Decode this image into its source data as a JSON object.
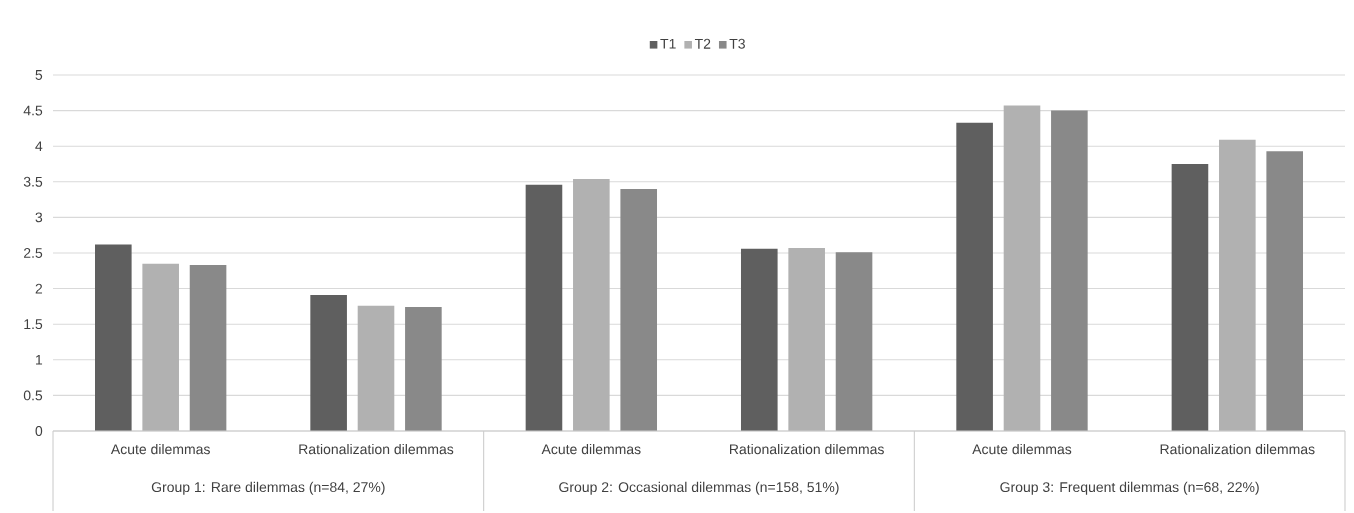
{
  "chart_data": {
    "type": "bar",
    "categories": [
      "Acute dilemmas",
      "Rationalization dilemmas",
      "Acute dilemmas",
      "Rationalization dilemmas",
      "Acute dilemmas",
      "Rationalization dilemmas"
    ],
    "series": [
      {
        "name": "T1",
        "color": "#5f5f5f",
        "values": [
          2.62,
          1.91,
          3.46,
          2.56,
          4.33,
          3.75
        ]
      },
      {
        "name": "T2",
        "color": "#b1b1b1",
        "values": [
          2.35,
          1.76,
          3.54,
          2.57,
          4.57,
          4.09
        ]
      },
      {
        "name": "T3",
        "color": "#898989",
        "values": [
          2.33,
          1.74,
          3.4,
          2.51,
          4.5,
          3.93
        ]
      }
    ],
    "ylim": [
      0,
      5
    ],
    "yticks": [
      0,
      0.5,
      1,
      1.5,
      2,
      2.5,
      3,
      3.5,
      4,
      4.5,
      5
    ],
    "grid": "y",
    "legend": "top",
    "annotations": [
      "Group 1: Rare dilemmas (n=84, 27%)",
      "Group 2: Occasional dilemmas (n=158, 51%)",
      "Group 3: Frequent dilemmas (n=68, 22%)"
    ]
  }
}
